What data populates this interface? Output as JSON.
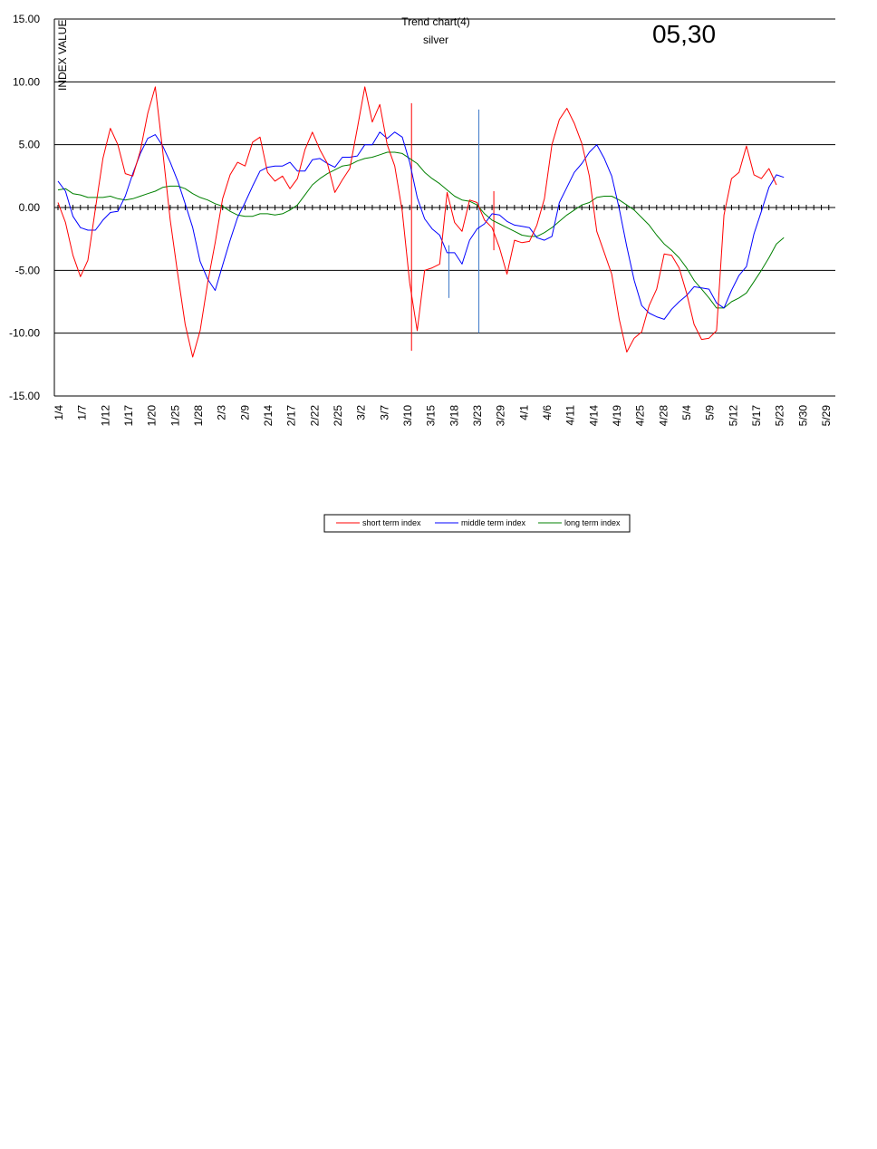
{
  "chart_data": {
    "type": "line",
    "title": "Trend chart(4)",
    "subtitle": "silver",
    "stamp": "05,30",
    "ylabel": "INDEX VALUE",
    "ylim": [
      -15,
      15
    ],
    "yticks": [
      "15.00",
      "10.00",
      "5.00",
      "0.00",
      "-5.00",
      "-10.00",
      "-15.00"
    ],
    "ytick_values": [
      15,
      10,
      5,
      0,
      -5,
      -10,
      -15
    ],
    "grid": true,
    "legend_position": "bottom-center",
    "xtick_labels": [
      "1/4",
      "1/7",
      "1/12",
      "1/17",
      "1/20",
      "1/25",
      "1/28",
      "2/3",
      "2/9",
      "2/14",
      "2/17",
      "2/22",
      "2/25",
      "3/2",
      "3/7",
      "3/10",
      "3/15",
      "3/18",
      "3/23",
      "3/29",
      "4/1",
      "4/6",
      "4/11",
      "4/14",
      "4/19",
      "4/25",
      "4/28",
      "5/4",
      "5/9",
      "5/12",
      "5/17",
      "5/23",
      "5/30",
      "5/29"
    ],
    "n_points": 102,
    "series": [
      {
        "name": "short term index",
        "color": "#ff0000",
        "values": [
          0.4,
          -1.2,
          -3.8,
          -5.5,
          -4.2,
          -0.1,
          3.9,
          6.3,
          5.0,
          2.7,
          2.5,
          4.5,
          7.5,
          9.6,
          4.5,
          -1.0,
          -5.3,
          -9.3,
          -11.9,
          -9.8,
          -6.0,
          -2.8,
          0.7,
          2.6,
          3.6,
          3.3,
          5.2,
          5.6,
          2.8,
          2.1,
          2.5,
          1.5,
          2.3,
          4.6,
          6.0,
          4.6,
          3.5,
          1.2,
          2.2,
          3.1,
          6.3,
          9.6,
          6.8,
          8.2,
          5.0,
          3.3,
          -0.3,
          -6.0,
          -9.8,
          -5.0,
          -4.8,
          -4.5,
          1.2,
          -1.2,
          -1.9,
          0.6,
          0.4,
          -1.0,
          -1.6,
          -3.2,
          -5.3,
          -2.6,
          -2.8,
          -2.7,
          -1.4,
          0.7,
          5.0,
          7.0,
          7.9,
          6.7,
          5.1,
          2.5,
          -1.9,
          -3.6,
          -5.3,
          -8.9,
          -11.5,
          -10.4,
          -9.9,
          -7.8,
          -6.5,
          -3.7,
          -3.8,
          -4.8,
          -6.8,
          -9.3,
          -10.5,
          -10.4,
          -9.8,
          -0.6,
          2.3,
          2.8,
          4.9,
          2.6,
          2.3,
          3.1,
          1.8
        ],
        "extra_values": [
          2.4,
          2.2,
          1.8,
          1.8,
          1.8
        ]
      },
      {
        "name": "middle term index",
        "color": "#0000ff",
        "values": [
          2.1,
          1.3,
          -0.7,
          -1.6,
          -1.8,
          -1.8,
          -1.0,
          -0.4,
          -0.3,
          0.9,
          2.7,
          4.3,
          5.5,
          5.8,
          4.9,
          3.6,
          2.1,
          0.3,
          -1.6,
          -4.3,
          -5.7,
          -6.6,
          -4.6,
          -2.6,
          -0.8,
          0.4,
          1.7,
          2.9,
          3.2,
          3.3,
          3.3,
          3.6,
          2.9,
          2.9,
          3.8,
          3.9,
          3.5,
          3.2,
          4.0,
          4.0,
          4.1,
          5.0,
          5.0,
          6.0,
          5.5,
          6.0,
          5.6,
          3.6,
          0.8,
          -0.9,
          -1.7,
          -2.2,
          -3.6,
          -3.6,
          -4.5,
          -2.6,
          -1.7,
          -1.3,
          -0.5,
          -0.6,
          -1.1,
          -1.4,
          -1.5,
          -1.6,
          -2.4,
          -2.6,
          -2.3,
          0.4,
          1.6,
          2.8,
          3.5,
          4.4,
          5.0,
          3.9,
          2.5,
          -0.1,
          -3.1,
          -5.8,
          -7.8,
          -8.4,
          -8.7,
          -8.9,
          -8.1,
          -7.5,
          -7.0,
          -6.3,
          -6.4,
          -6.5,
          -7.6,
          -8.0,
          -6.6,
          -5.4,
          -4.7,
          -2.1,
          -0.3,
          1.6,
          2.6,
          2.4
        ]
      },
      {
        "name": "long term index",
        "color": "#008000",
        "values": [
          1.4,
          1.5,
          1.1,
          1.0,
          0.8,
          0.8,
          0.8,
          0.9,
          0.7,
          0.6,
          0.7,
          0.9,
          1.1,
          1.3,
          1.6,
          1.7,
          1.7,
          1.5,
          1.1,
          0.8,
          0.6,
          0.3,
          0.1,
          -0.3,
          -0.6,
          -0.7,
          -0.7,
          -0.5,
          -0.5,
          -0.6,
          -0.5,
          -0.2,
          0.2,
          1.0,
          1.8,
          2.3,
          2.7,
          3.0,
          3.3,
          3.4,
          3.7,
          3.9,
          4.0,
          4.2,
          4.4,
          4.4,
          4.3,
          3.9,
          3.5,
          2.8,
          2.3,
          1.9,
          1.4,
          0.9,
          0.6,
          0.5,
          0.2,
          -0.5,
          -1.0,
          -1.3,
          -1.6,
          -1.9,
          -2.2,
          -2.3,
          -2.3,
          -2.0,
          -1.6,
          -1.1,
          -0.6,
          -0.2,
          0.2,
          0.4,
          0.8,
          0.9,
          0.9,
          0.6,
          0.2,
          -0.2,
          -0.8,
          -1.4,
          -2.2,
          -2.9,
          -3.4,
          -4.0,
          -4.8,
          -5.8,
          -6.5,
          -7.2,
          -8.0,
          -8.0,
          -7.5,
          -7.2,
          -6.8,
          -5.9,
          -5.0,
          -4.0,
          -2.9,
          -2.4
        ]
      }
    ],
    "vertical_markers": [
      {
        "x_index": 47,
        "y_from": 8.3,
        "y_to": -11.4,
        "color": "#ff0000"
      },
      {
        "x_index": 52,
        "y_from": -3.0,
        "y_to": -7.2,
        "color": "#3c78c8"
      },
      {
        "x_index": 56,
        "y_from": 7.8,
        "y_to": -10.0,
        "color": "#3c78c8"
      },
      {
        "x_index": 58,
        "y_from": 1.3,
        "y_to": -3.4,
        "color": "#ff0000"
      }
    ]
  }
}
